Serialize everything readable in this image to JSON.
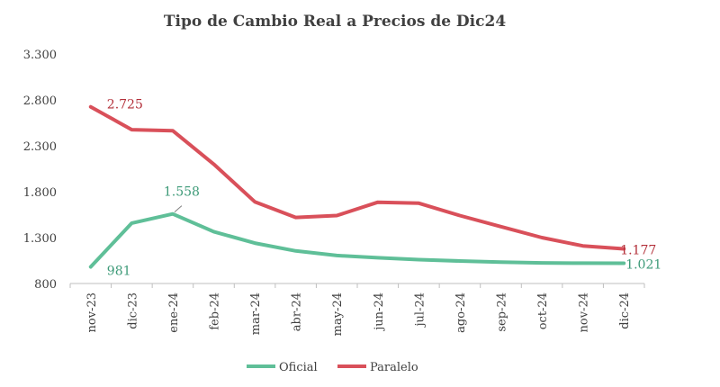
{
  "chart_data": {
    "type": "line",
    "title": "Tipo de Cambio Real a Precios de Dic24",
    "categories": [
      "nov-23",
      "dic-23",
      "ene-24",
      "feb-24",
      "mar-24",
      "abr-24",
      "may-24",
      "jun-24",
      "jul-24",
      "ago-24",
      "sep-24",
      "oct-24",
      "nov-24",
      "dic-24"
    ],
    "ylim": [
      800,
      3300
    ],
    "yticks": [
      "800",
      "1.300",
      "1.800",
      "2.300",
      "2.800",
      "3.300"
    ],
    "grid": false,
    "legend_position": "bottom",
    "series": [
      {
        "name": "Oficial",
        "color": "#5fbf98",
        "values": [
          981,
          1458,
          1558,
          1365,
          1240,
          1155,
          1105,
          1080,
          1060,
          1045,
          1032,
          1025,
          1022,
          1021
        ]
      },
      {
        "name": "Paralelo",
        "color": "#d9505a",
        "values": [
          2725,
          2475,
          2465,
          2100,
          1690,
          1520,
          1540,
          1685,
          1675,
          1540,
          1420,
          1300,
          1210,
          1177
        ]
      }
    ],
    "data_labels": [
      {
        "series": 0,
        "index": 0,
        "text": "981"
      },
      {
        "series": 0,
        "index": 2,
        "text": "1.558"
      },
      {
        "series": 0,
        "index": 13,
        "text": "1.021"
      },
      {
        "series": 1,
        "index": 0,
        "text": "2.725"
      },
      {
        "series": 1,
        "index": 13,
        "text": "1.177"
      }
    ]
  }
}
